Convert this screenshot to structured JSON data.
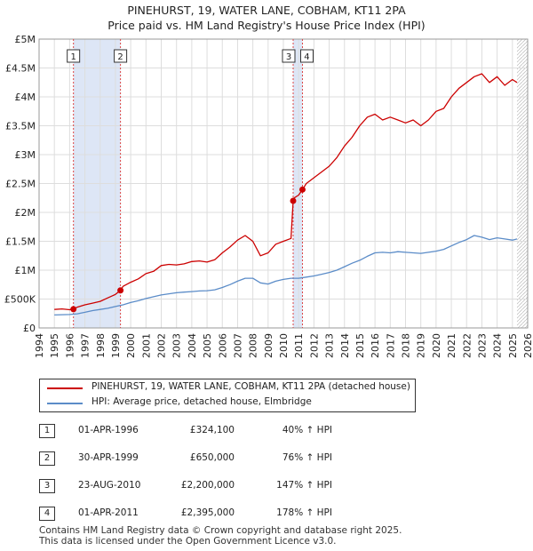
{
  "title_lines": [
    "PINEHURST, 19, WATER LANE, COBHAM, KT11 2PA",
    "Price paid vs. HM Land Registry's House Price Index (HPI)"
  ],
  "chart_data": {
    "type": "line",
    "xlim": [
      1994,
      2026
    ],
    "ylim": [
      0,
      5000000
    ],
    "y_ticks": [
      0,
      500000,
      1000000,
      1500000,
      2000000,
      2500000,
      3000000,
      3500000,
      4000000,
      4500000,
      5000000
    ],
    "y_tick_labels": [
      "£0",
      "£500K",
      "£1M",
      "£1.5M",
      "£2M",
      "£2.5M",
      "£3M",
      "£3.5M",
      "£4M",
      "£4.5M",
      "£5M"
    ],
    "x_ticks": [
      1994,
      1995,
      1996,
      1997,
      1998,
      1999,
      2000,
      2001,
      2002,
      2003,
      2004,
      2005,
      2006,
      2007,
      2008,
      2009,
      2010,
      2011,
      2012,
      2013,
      2014,
      2015,
      2016,
      2017,
      2018,
      2019,
      2020,
      2021,
      2022,
      2023,
      2024,
      2025,
      2026
    ],
    "x_tick_labels": [
      "1994",
      "1995",
      "1996",
      "1997",
      "1998",
      "1999",
      "2000",
      "2001",
      "2002",
      "2003",
      "2004",
      "2005",
      "2006",
      "2007",
      "2008",
      "2009",
      "2010",
      "2011",
      "2012",
      "2013",
      "2014",
      "2015",
      "2016",
      "2017",
      "2018",
      "2019",
      "2020",
      "2021",
      "2022",
      "2023",
      "2024",
      "2025",
      "2026"
    ],
    "grid": true,
    "series": [
      {
        "name": "PINEHURST, 19, WATER LANE, COBHAM, KT11 2PA (detached house)",
        "color": "#cc0000",
        "x": [
          1995.0,
          1995.5,
          1996.0,
          1996.25,
          1996.5,
          1997.0,
          1997.5,
          1998.0,
          1998.5,
          1999.0,
          1999.33,
          1999.5,
          2000.0,
          2000.5,
          2001.0,
          2001.5,
          2002.0,
          2002.5,
          2003.0,
          2003.5,
          2004.0,
          2004.5,
          2005.0,
          2005.5,
          2006.0,
          2006.5,
          2007.0,
          2007.5,
          2008.0,
          2008.5,
          2009.0,
          2009.5,
          2010.0,
          2010.5,
          2010.64,
          2010.7,
          2011.0,
          2011.25,
          2011.5,
          2012.0,
          2012.5,
          2013.0,
          2013.5,
          2014.0,
          2014.5,
          2015.0,
          2015.5,
          2016.0,
          2016.5,
          2017.0,
          2017.5,
          2018.0,
          2018.5,
          2019.0,
          2019.5,
          2020.0,
          2020.5,
          2021.0,
          2021.5,
          2022.0,
          2022.5,
          2023.0,
          2023.5,
          2024.0,
          2024.5,
          2025.0,
          2025.3
        ],
        "values": [
          320000,
          330000,
          315000,
          324100,
          360000,
          400000,
          430000,
          460000,
          520000,
          580000,
          650000,
          720000,
          790000,
          850000,
          940000,
          980000,
          1080000,
          1100000,
          1090000,
          1110000,
          1150000,
          1160000,
          1140000,
          1180000,
          1300000,
          1400000,
          1520000,
          1600000,
          1500000,
          1250000,
          1300000,
          1450000,
          1500000,
          1550000,
          2200000,
          2250000,
          2300000,
          2395000,
          2500000,
          2600000,
          2700000,
          2800000,
          2950000,
          3150000,
          3300000,
          3500000,
          3650000,
          3700000,
          3600000,
          3650000,
          3600000,
          3550000,
          3600000,
          3500000,
          3600000,
          3750000,
          3800000,
          4000000,
          4150000,
          4250000,
          4350000,
          4400000,
          4250000,
          4350000,
          4200000,
          4300000,
          4250000
        ]
      },
      {
        "name": "HPI: Average price, detached house, Elmbridge",
        "color": "#5b8cc8",
        "x": [
          1995.0,
          1995.5,
          1996.0,
          1996.5,
          1997.0,
          1997.5,
          1998.0,
          1998.5,
          1999.0,
          1999.5,
          2000.0,
          2000.5,
          2001.0,
          2001.5,
          2002.0,
          2002.5,
          2003.0,
          2003.5,
          2004.0,
          2004.5,
          2005.0,
          2005.5,
          2006.0,
          2006.5,
          2007.0,
          2007.5,
          2008.0,
          2008.5,
          2009.0,
          2009.5,
          2010.0,
          2010.5,
          2011.0,
          2011.5,
          2012.0,
          2012.5,
          2013.0,
          2013.5,
          2014.0,
          2014.5,
          2015.0,
          2015.5,
          2016.0,
          2016.5,
          2017.0,
          2017.5,
          2018.0,
          2018.5,
          2019.0,
          2019.5,
          2020.0,
          2020.5,
          2021.0,
          2021.5,
          2022.0,
          2022.5,
          2023.0,
          2023.5,
          2024.0,
          2024.5,
          2025.0,
          2025.3
        ],
        "values": [
          225000,
          230000,
          232000,
          245000,
          270000,
          300000,
          320000,
          340000,
          370000,
          400000,
          440000,
          470000,
          510000,
          540000,
          570000,
          590000,
          610000,
          620000,
          630000,
          640000,
          645000,
          660000,
          700000,
          750000,
          810000,
          860000,
          860000,
          780000,
          760000,
          810000,
          840000,
          860000,
          860000,
          880000,
          900000,
          930000,
          960000,
          1000000,
          1060000,
          1120000,
          1170000,
          1240000,
          1300000,
          1310000,
          1300000,
          1320000,
          1310000,
          1300000,
          1290000,
          1310000,
          1330000,
          1360000,
          1420000,
          1480000,
          1530000,
          1600000,
          1570000,
          1530000,
          1560000,
          1540000,
          1520000,
          1540000
        ]
      }
    ],
    "shaded_periods": [
      [
        1996.25,
        1999.33
      ],
      [
        2010.64,
        2011.25
      ]
    ],
    "sale_markers": [
      {
        "label": "1",
        "x": 1996.25,
        "value": 324100
      },
      {
        "label": "2",
        "x": 1999.33,
        "value": 650000
      },
      {
        "label": "3",
        "x": 2010.64,
        "value": 2200000
      },
      {
        "label": "4",
        "x": 2011.25,
        "value": 2395000
      }
    ]
  },
  "legend": {
    "items": [
      {
        "label": "PINEHURST, 19, WATER LANE, COBHAM, KT11 2PA (detached house)",
        "color": "#cc0000"
      },
      {
        "label": "HPI: Average price, detached house, Elmbridge",
        "color": "#5b8cc8"
      }
    ]
  },
  "transactions": [
    {
      "num": "1",
      "date": "01-APR-1996",
      "price": "£324,100",
      "hpi": "40% ↑ HPI"
    },
    {
      "num": "2",
      "date": "30-APR-1999",
      "price": "£650,000",
      "hpi": "76% ↑ HPI"
    },
    {
      "num": "3",
      "date": "23-AUG-2010",
      "price": "£2,200,000",
      "hpi": "147% ↑ HPI"
    },
    {
      "num": "4",
      "date": "01-APR-2011",
      "price": "£2,395,000",
      "hpi": "178% ↑ HPI"
    }
  ],
  "footer": [
    "Contains HM Land Registry data © Crown copyright and database right 2025.",
    "This data is licensed under the Open Government Licence v3.0."
  ]
}
